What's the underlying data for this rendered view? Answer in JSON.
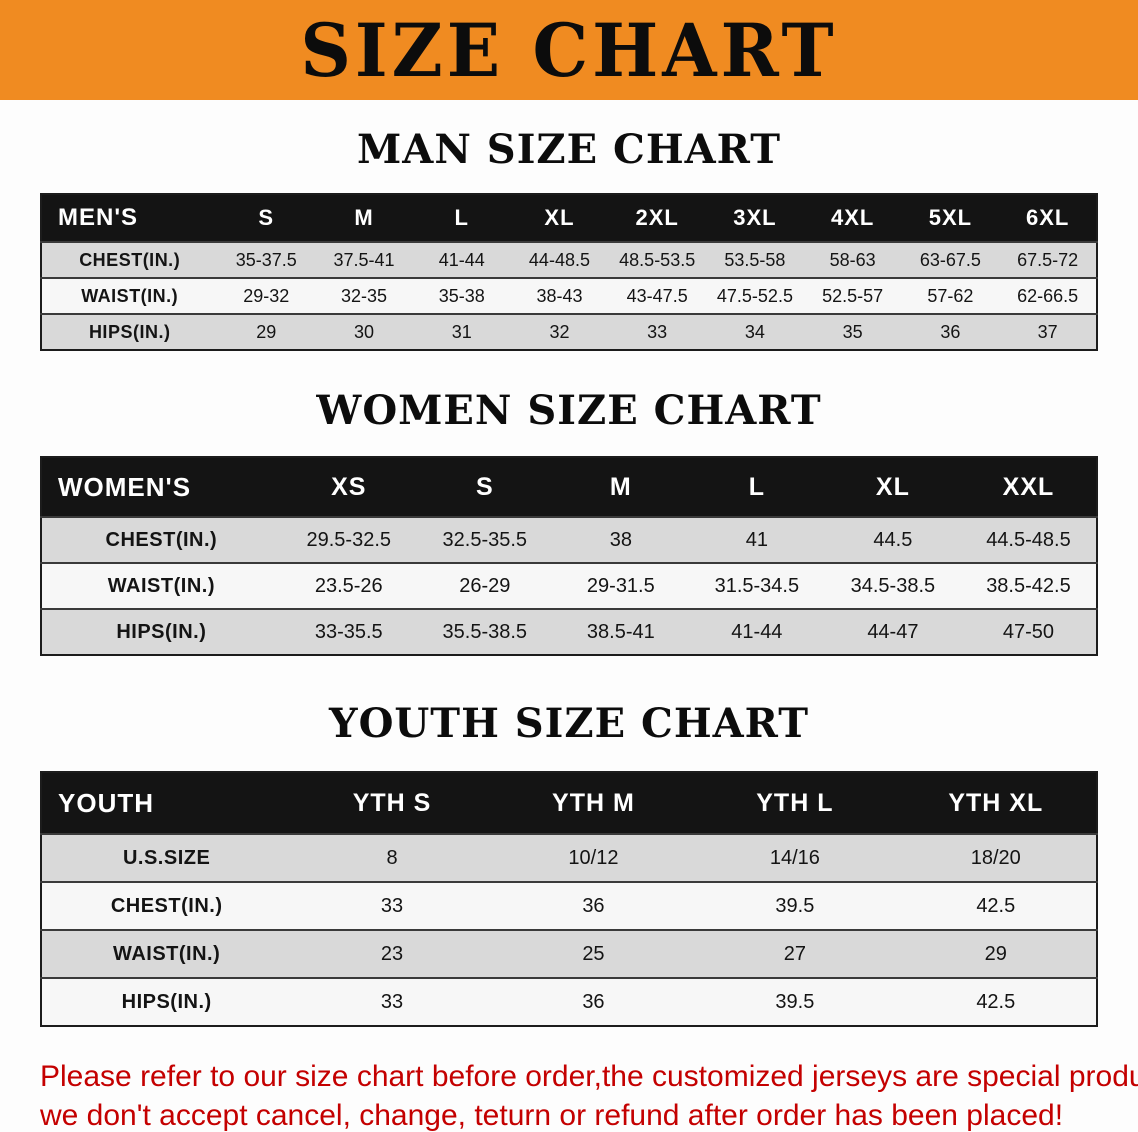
{
  "banner": {
    "title": "SIZE CHART"
  },
  "colors": {
    "banner_bg": "#f08b21",
    "header_bg": "#141414",
    "stripe": "#d9d9d9",
    "disclaimer": "#c40000"
  },
  "sections": [
    {
      "heading": "MAN SIZE CHART",
      "header": [
        "MEN'S",
        "S",
        "M",
        "L",
        "XL",
        "2XL",
        "3XL",
        "4XL",
        "5XL",
        "6XL"
      ],
      "rows": [
        [
          "CHEST(IN.)",
          "35-37.5",
          "37.5-41",
          "41-44",
          "44-48.5",
          "48.5-53.5",
          "53.5-58",
          "58-63",
          "63-67.5",
          "67.5-72"
        ],
        [
          "WAIST(IN.)",
          "29-32",
          "32-35",
          "35-38",
          "38-43",
          "43-47.5",
          "47.5-52.5",
          "52.5-57",
          "57-62",
          "62-66.5"
        ],
        [
          "HIPS(IN.)",
          "29",
          "30",
          "31",
          "32",
          "33",
          "34",
          "35",
          "36",
          "37"
        ]
      ]
    },
    {
      "heading": "WOMEN SIZE CHART",
      "header": [
        "WOMEN'S",
        "XS",
        "S",
        "M",
        "L",
        "XL",
        "XXL"
      ],
      "rows": [
        [
          "CHEST(IN.)",
          "29.5-32.5",
          "32.5-35.5",
          "38",
          "41",
          "44.5",
          "44.5-48.5"
        ],
        [
          "WAIST(IN.)",
          "23.5-26",
          "26-29",
          "29-31.5",
          "31.5-34.5",
          "34.5-38.5",
          "38.5-42.5"
        ],
        [
          "HIPS(IN.)",
          "33-35.5",
          "35.5-38.5",
          "38.5-41",
          "41-44",
          "44-47",
          "47-50"
        ]
      ]
    },
    {
      "heading": "YOUTH SIZE CHART",
      "header": [
        "YOUTH",
        "YTH S",
        "YTH M",
        "YTH L",
        "YTH XL"
      ],
      "rows": [
        [
          "U.S.SIZE",
          "8",
          "10/12",
          "14/16",
          "18/20"
        ],
        [
          "CHEST(IN.)",
          "33",
          "36",
          "39.5",
          "42.5"
        ],
        [
          "WAIST(IN.)",
          "23",
          "25",
          "27",
          "29"
        ],
        [
          "HIPS(IN.)",
          "33",
          "36",
          "39.5",
          "42.5"
        ]
      ]
    }
  ],
  "disclaimer": {
    "line1": "Please refer to our size chart before order,the customized jerseys are special products,",
    "line2": "we don't accept cancel, change, teturn or refund after order has been placed!"
  }
}
